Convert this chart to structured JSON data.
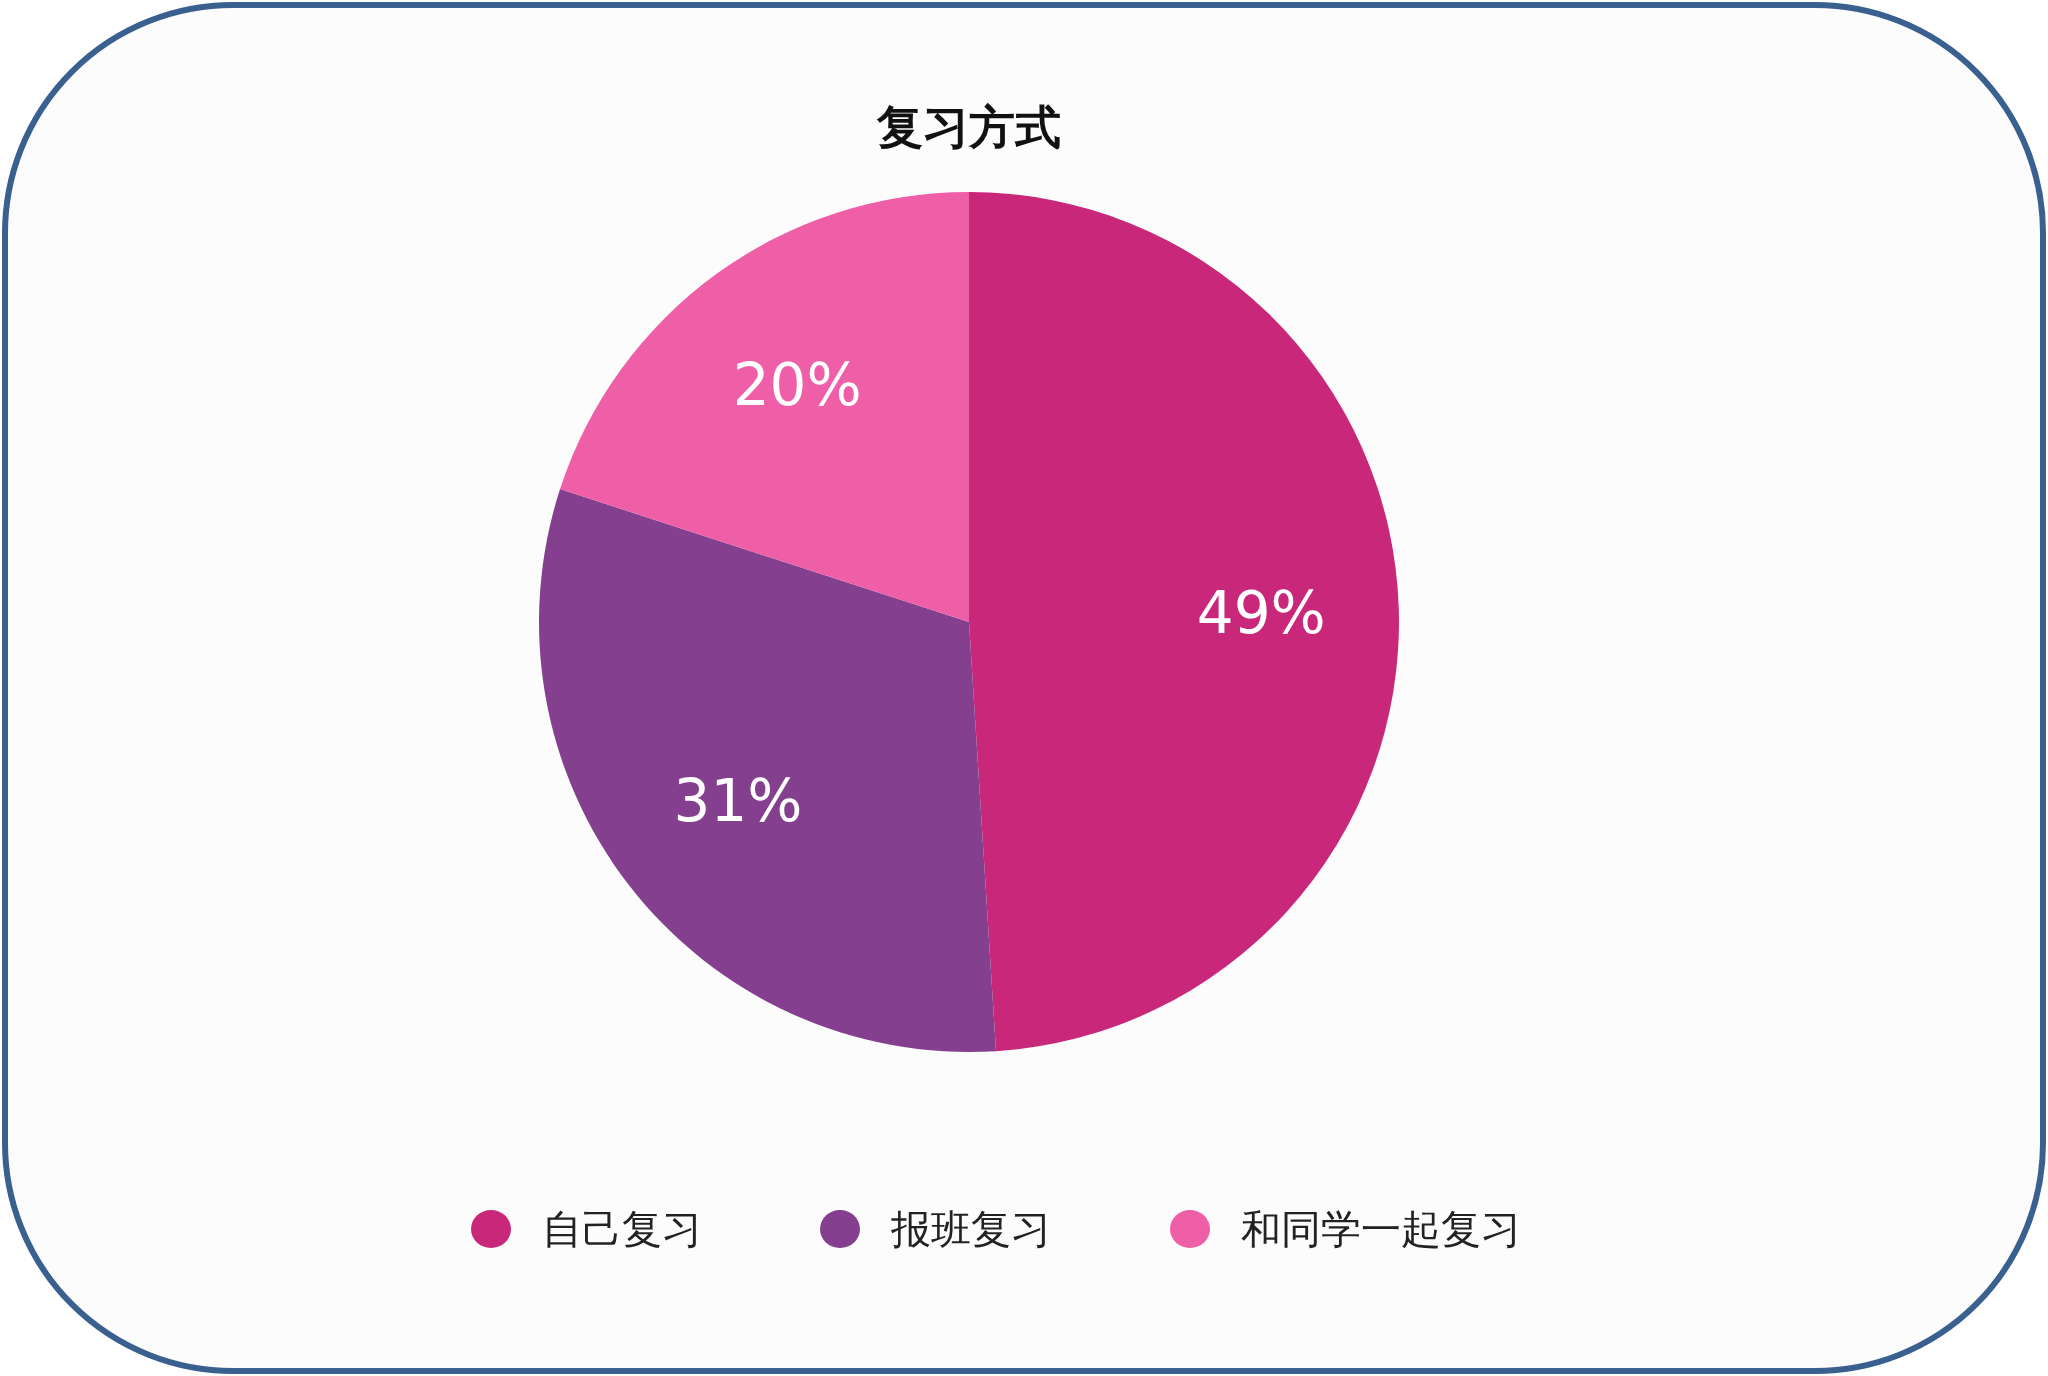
{
  "chart_data": {
    "type": "pie",
    "title": "复习方式",
    "categories": [
      "自己复习",
      "报班复习",
      "和同学一起复习"
    ],
    "values": [
      49,
      31,
      20
    ],
    "colors": [
      "#c9277a",
      "#843f8e",
      "#ee5fa7"
    ],
    "value_labels": [
      "49%",
      "31%",
      "20%"
    ],
    "legend": "bottom"
  }
}
